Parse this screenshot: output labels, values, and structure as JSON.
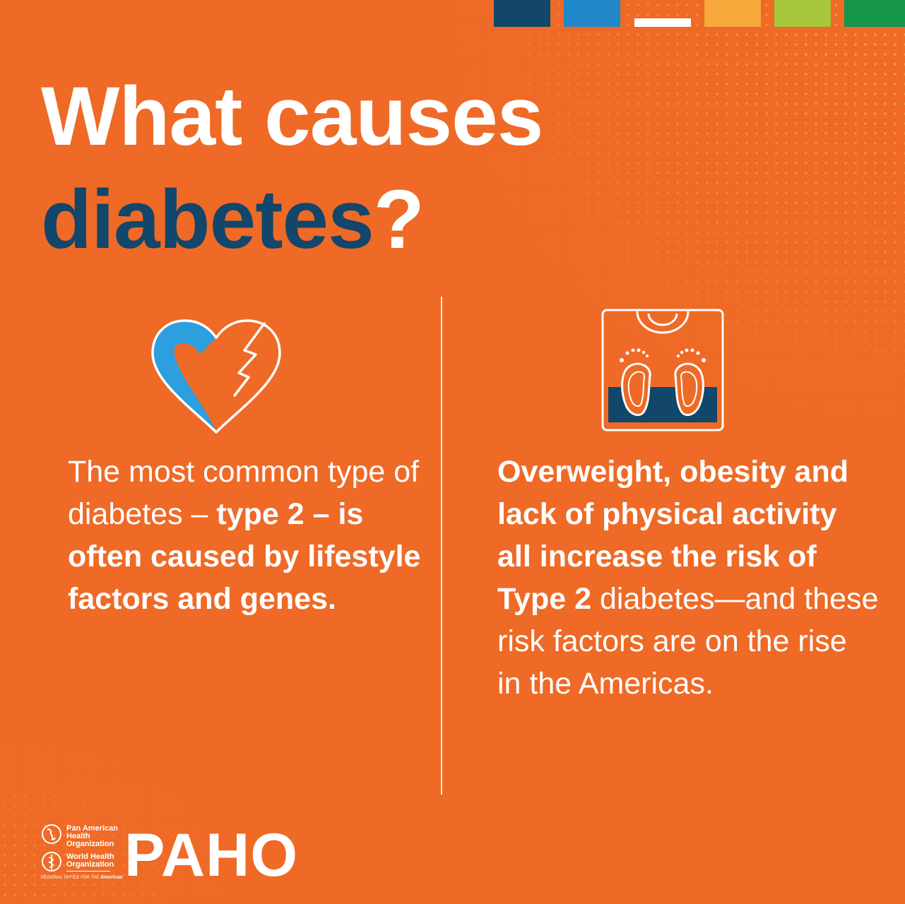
{
  "palette": {
    "background": "#ee6a26",
    "navy": "#12466a",
    "blue": "#2c9fdf",
    "white": "#ffffff",
    "bars": [
      "#12466a",
      "#2188c9",
      "#ffffff",
      "#f7a93b",
      "#a6c63b",
      "#15964a"
    ]
  },
  "title": {
    "line1": "What causes",
    "line2_highlight": "diabetes",
    "line2_punct": "?"
  },
  "left": {
    "icon": "broken-heart-icon",
    "text_regular_1": "The most common type of diabetes –",
    "text_bold": "type 2 – is often caused by lifestyle factors and genes."
  },
  "right": {
    "icon": "scale-with-feet-icon",
    "text_bold": "Overweight, obesity and lack of physical activity all increase the risk of Type 2",
    "text_regular": "diabetes—and these risk factors are on the rise in the Americas."
  },
  "footer": {
    "paho_line1": "Pan American",
    "paho_line2": "Health",
    "paho_line3": "Organization",
    "who_line1": "World Health",
    "who_line2": "Organization",
    "regional_office": "REGIONAL OFFICE FOR THE",
    "regional_office_region": "Americas",
    "wordmark": "PAHO"
  }
}
